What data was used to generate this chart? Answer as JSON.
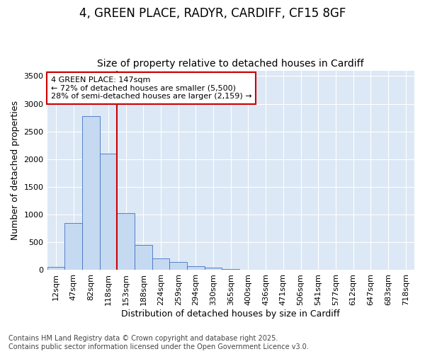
{
  "title_line1": "4, GREEN PLACE, RADYR, CARDIFF, CF15 8GF",
  "title_line2": "Size of property relative to detached houses in Cardiff",
  "xlabel": "Distribution of detached houses by size in Cardiff",
  "ylabel": "Number of detached properties",
  "categories": [
    "12sqm",
    "47sqm",
    "82sqm",
    "118sqm",
    "153sqm",
    "188sqm",
    "224sqm",
    "259sqm",
    "294sqm",
    "330sqm",
    "365sqm",
    "400sqm",
    "436sqm",
    "471sqm",
    "506sqm",
    "541sqm",
    "577sqm",
    "612sqm",
    "647sqm",
    "683sqm",
    "718sqm"
  ],
  "values": [
    55,
    850,
    2780,
    2100,
    1030,
    450,
    210,
    145,
    65,
    40,
    15,
    8,
    3,
    1,
    0,
    0,
    0,
    0,
    0,
    0,
    0
  ],
  "bar_color": "#c5d9f1",
  "bar_edge_color": "#4472c4",
  "red_line_index": 4,
  "annotation_line1": "4 GREEN PLACE: 147sqm",
  "annotation_line2": "← 72% of detached houses are smaller (5,500)",
  "annotation_line3": "28% of semi-detached houses are larger (2,159) →",
  "annotation_box_facecolor": "#ffffff",
  "annotation_box_edgecolor": "#cc0000",
  "ylim": [
    0,
    3600
  ],
  "yticks": [
    0,
    500,
    1000,
    1500,
    2000,
    2500,
    3000,
    3500
  ],
  "plot_bg_color": "#dce8f5",
  "fig_bg_color": "#ffffff",
  "grid_color": "#ffffff",
  "footer_line1": "Contains HM Land Registry data © Crown copyright and database right 2025.",
  "footer_line2": "Contains public sector information licensed under the Open Government Licence v3.0.",
  "title1_fontsize": 12,
  "title2_fontsize": 10,
  "axis_label_fontsize": 9,
  "tick_fontsize": 8,
  "annotation_fontsize": 8,
  "footer_fontsize": 7
}
